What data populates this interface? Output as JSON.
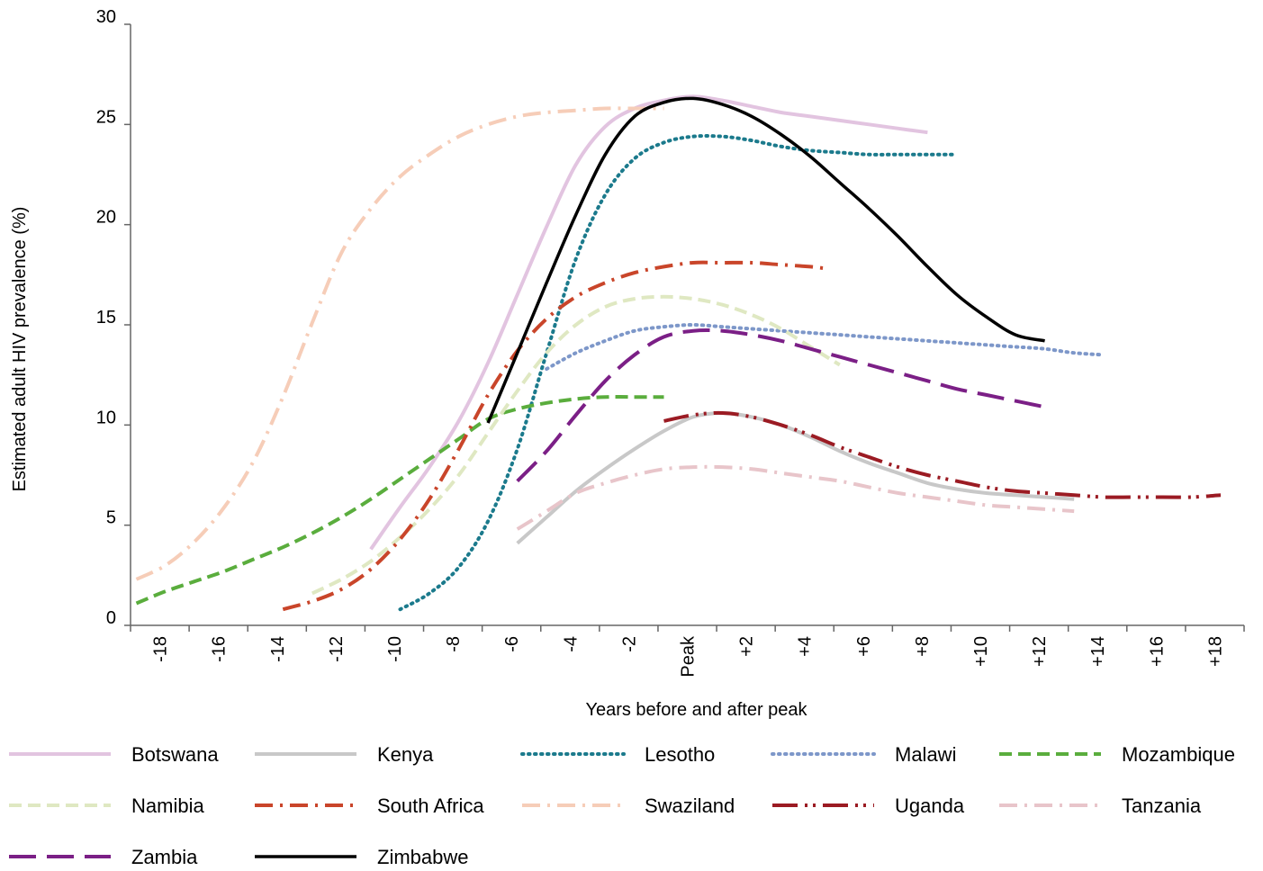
{
  "chart_data": {
    "type": "line",
    "title": "",
    "xlabel": "Years before and after peak",
    "ylabel": "Estimated adult HIV prevalence (%)",
    "xlim": [
      -19,
      19
    ],
    "ylim": [
      0,
      30
    ],
    "x_ticks": [
      {
        "value": -18,
        "label": "-18"
      },
      {
        "value": -16,
        "label": "-16"
      },
      {
        "value": -14,
        "label": "-14"
      },
      {
        "value": -12,
        "label": "-12"
      },
      {
        "value": -10,
        "label": "-10"
      },
      {
        "value": -8,
        "label": "-8"
      },
      {
        "value": -6,
        "label": "-6"
      },
      {
        "value": -4,
        "label": "-4"
      },
      {
        "value": -2,
        "label": "-2"
      },
      {
        "value": 0,
        "label": "Peak"
      },
      {
        "value": 2,
        "label": "+2"
      },
      {
        "value": 4,
        "label": "+4"
      },
      {
        "value": 6,
        "label": "+6"
      },
      {
        "value": 8,
        "label": "+8"
      },
      {
        "value": 10,
        "label": "+10"
      },
      {
        "value": 12,
        "label": "+12"
      },
      {
        "value": 14,
        "label": "+14"
      },
      {
        "value": 16,
        "label": "+16"
      },
      {
        "value": 18,
        "label": "+18"
      }
    ],
    "y_ticks": [
      {
        "value": 0,
        "label": "0"
      },
      {
        "value": 5,
        "label": "5"
      },
      {
        "value": 10,
        "label": "10"
      },
      {
        "value": 15,
        "label": "15"
      },
      {
        "value": 20,
        "label": "20"
      },
      {
        "value": 25,
        "label": "25"
      },
      {
        "value": 30,
        "label": "30"
      }
    ],
    "grid": false,
    "legend_position": "bottom",
    "series": [
      {
        "name": "Botswana",
        "color": "#e2c4e0",
        "dash": "solid",
        "x": [
          -10.8,
          -9.8,
          -8.8,
          -7.8,
          -6.8,
          -5.8,
          -4.8,
          -3.8,
          -2.8,
          -1.8,
          -0.8,
          0.2,
          1.2,
          2.2,
          3.2,
          4.2,
          5.2,
          6.2,
          7.2,
          8.2
        ],
        "y": [
          3.8,
          5.9,
          7.9,
          10.2,
          13.1,
          16.5,
          19.9,
          23.0,
          24.9,
          25.8,
          26.2,
          26.4,
          26.2,
          25.9,
          25.6,
          25.4,
          25.2,
          25.0,
          24.8,
          24.6
        ]
      },
      {
        "name": "Kenya",
        "color": "#c8c8c8",
        "dash": "solid",
        "x": [
          -5.8,
          -4.8,
          -3.8,
          -2.8,
          -1.8,
          -0.8,
          0.2,
          1.2,
          2.2,
          3.2,
          4.2,
          5.2,
          6.2,
          7.2,
          8.2,
          9.2,
          10.2,
          11.2,
          12.2,
          13.2
        ],
        "y": [
          4.1,
          5.4,
          6.7,
          7.8,
          8.8,
          9.7,
          10.4,
          10.6,
          10.4,
          10.0,
          9.4,
          8.7,
          8.1,
          7.6,
          7.1,
          6.8,
          6.6,
          6.5,
          6.4,
          6.3
        ]
      },
      {
        "name": "Lesotho",
        "color": "#1b7a8c",
        "dash": "dotted",
        "x": [
          -9.8,
          -8.8,
          -7.8,
          -6.8,
          -5.8,
          -4.8,
          -3.8,
          -2.8,
          -1.8,
          -0.8,
          0.2,
          1.2,
          2.2,
          3.2,
          4.2,
          5.2,
          6.2,
          7.2,
          8.2,
          9.2
        ],
        "y": [
          0.8,
          1.6,
          2.9,
          5.2,
          8.8,
          13.6,
          18.3,
          21.5,
          23.3,
          24.1,
          24.4,
          24.4,
          24.2,
          23.9,
          23.7,
          23.6,
          23.5,
          23.5,
          23.5,
          23.5
        ]
      },
      {
        "name": "Malawi",
        "color": "#7d97c9",
        "dash": "dotted",
        "x": [
          -4.8,
          -3.8,
          -2.8,
          -1.8,
          -0.8,
          0.2,
          1.2,
          2.2,
          3.2,
          4.2,
          5.2,
          6.2,
          7.2,
          8.2,
          9.2,
          10.2,
          11.2,
          12.2,
          13.2,
          14.2
        ],
        "y": [
          12.8,
          13.6,
          14.2,
          14.7,
          14.9,
          15.0,
          14.9,
          14.8,
          14.7,
          14.6,
          14.5,
          14.4,
          14.3,
          14.2,
          14.1,
          14.0,
          13.9,
          13.8,
          13.6,
          13.5
        ]
      },
      {
        "name": "Mozambique",
        "color": "#5aad3d",
        "dash": "dashed",
        "x": [
          -18.8,
          -17.8,
          -16.8,
          -15.8,
          -14.8,
          -13.8,
          -12.8,
          -11.8,
          -10.8,
          -9.8,
          -8.8,
          -7.8,
          -6.8,
          -5.8,
          -4.8,
          -3.8,
          -2.8,
          -1.8,
          -0.8
        ],
        "y": [
          1.1,
          1.7,
          2.2,
          2.7,
          3.3,
          3.9,
          4.6,
          5.4,
          6.3,
          7.3,
          8.3,
          9.3,
          10.3,
          10.8,
          11.1,
          11.3,
          11.4,
          11.4,
          11.4
        ]
      },
      {
        "name": "Namibia",
        "color": "#dfe8c2",
        "dash": "dashed",
        "x": [
          -12.8,
          -11.8,
          -10.8,
          -9.8,
          -8.8,
          -7.8,
          -6.8,
          -5.8,
          -4.8,
          -3.8,
          -2.8,
          -1.8,
          -0.8,
          0.2,
          1.2,
          2.2,
          3.2,
          4.2,
          5.2
        ],
        "y": [
          1.6,
          2.3,
          3.2,
          4.4,
          5.8,
          7.5,
          9.6,
          11.7,
          13.6,
          15.0,
          15.9,
          16.3,
          16.4,
          16.3,
          16.0,
          15.5,
          14.8,
          13.9,
          13.0
        ]
      },
      {
        "name": "South Africa",
        "color": "#c9452a",
        "dash": "dashdot",
        "x": [
          -13.8,
          -12.8,
          -11.8,
          -10.8,
          -9.8,
          -8.8,
          -7.8,
          -6.8,
          -5.8,
          -4.8,
          -3.8,
          -2.8,
          -1.8,
          -0.8,
          0.2,
          1.2,
          2.2,
          3.2,
          4.2,
          4.8
        ],
        "y": [
          0.8,
          1.2,
          1.8,
          2.8,
          4.3,
          6.3,
          8.8,
          11.5,
          13.7,
          15.3,
          16.4,
          17.1,
          17.6,
          17.9,
          18.1,
          18.1,
          18.1,
          18.0,
          17.9,
          17.8
        ]
      },
      {
        "name": "Swaziland",
        "color": "#f6cdb8",
        "dash": "dashdot",
        "x": [
          -18.8,
          -17.8,
          -16.8,
          -15.8,
          -14.8,
          -13.8,
          -12.8,
          -11.8,
          -10.8,
          -9.8,
          -8.8,
          -7.8,
          -6.8,
          -5.8,
          -4.8,
          -3.8,
          -2.8,
          -1.8,
          -0.8
        ],
        "y": [
          2.3,
          3.0,
          4.2,
          5.9,
          8.2,
          11.4,
          15.1,
          18.6,
          20.8,
          22.4,
          23.5,
          24.4,
          25.0,
          25.4,
          25.6,
          25.7,
          25.8,
          25.8,
          25.8
        ]
      },
      {
        "name": "Uganda",
        "color": "#9b1b23",
        "dash": "dashdotdot",
        "x": [
          -0.8,
          0.2,
          1.2,
          2.2,
          3.2,
          4.2,
          5.2,
          6.2,
          7.2,
          8.2,
          9.2,
          10.2,
          11.2,
          12.2,
          13.2,
          14.2,
          15.2,
          16.2,
          17.2,
          18.2
        ],
        "y": [
          10.2,
          10.5,
          10.6,
          10.4,
          10.0,
          9.5,
          8.9,
          8.4,
          7.9,
          7.5,
          7.2,
          6.9,
          6.7,
          6.6,
          6.5,
          6.4,
          6.4,
          6.4,
          6.4,
          6.5
        ]
      },
      {
        "name": "Tanzania",
        "color": "#e8c5ca",
        "dash": "dashdot",
        "x": [
          -5.8,
          -4.8,
          -3.8,
          -2.8,
          -1.8,
          -0.8,
          0.2,
          1.2,
          2.2,
          3.2,
          4.2,
          5.2,
          6.2,
          7.2,
          8.2,
          9.2,
          10.2,
          11.2,
          12.2,
          13.2
        ],
        "y": [
          4.8,
          5.7,
          6.6,
          7.1,
          7.5,
          7.8,
          7.9,
          7.9,
          7.8,
          7.6,
          7.4,
          7.2,
          6.9,
          6.6,
          6.4,
          6.2,
          6.0,
          5.9,
          5.8,
          5.7
        ]
      },
      {
        "name": "Zambia",
        "color": "#7b1f86",
        "dash": "longdash",
        "x": [
          -5.8,
          -4.8,
          -3.8,
          -2.8,
          -1.8,
          -0.8,
          0.2,
          1.2,
          2.2,
          3.2,
          4.2,
          5.2,
          6.2,
          7.2,
          8.2,
          9.2,
          10.2,
          11.2,
          12.2
        ],
        "y": [
          7.2,
          8.7,
          10.5,
          12.2,
          13.5,
          14.4,
          14.7,
          14.7,
          14.5,
          14.2,
          13.8,
          13.4,
          13.0,
          12.6,
          12.2,
          11.8,
          11.5,
          11.2,
          10.9
        ]
      },
      {
        "name": "Zimbabwe",
        "color": "#000000",
        "dash": "solid",
        "x": [
          -6.8,
          -5.8,
          -4.8,
          -3.8,
          -2.8,
          -1.8,
          -0.8,
          0.2,
          1.2,
          2.2,
          3.2,
          4.2,
          5.2,
          6.2,
          7.2,
          8.2,
          9.2,
          10.2,
          11.2,
          12.2
        ],
        "y": [
          10.1,
          13.6,
          17.1,
          20.5,
          23.5,
          25.4,
          26.1,
          26.3,
          26.0,
          25.4,
          24.5,
          23.4,
          22.1,
          20.8,
          19.4,
          17.9,
          16.5,
          15.4,
          14.5,
          14.2
        ]
      }
    ]
  }
}
